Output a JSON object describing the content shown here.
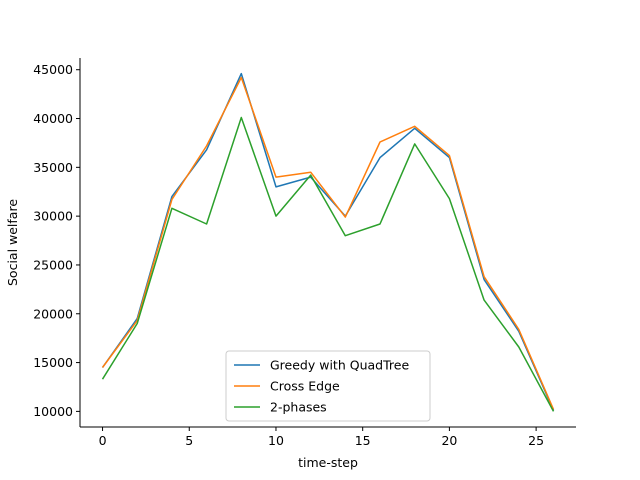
{
  "chart_data": {
    "type": "line",
    "xlabel": "time-step",
    "ylabel": "Social welfare",
    "xlim": [
      -1.3,
      27.3
    ],
    "ylim": [
      8400,
      46200
    ],
    "xticks": [
      0,
      5,
      10,
      15,
      20,
      25
    ],
    "yticks": [
      10000,
      15000,
      20000,
      25000,
      30000,
      35000,
      40000,
      45000
    ],
    "grid": false,
    "legend_position": "lower-center",
    "x": [
      0,
      2,
      4,
      6,
      8,
      10,
      12,
      14,
      16,
      18,
      20,
      22,
      24,
      26
    ],
    "series": [
      {
        "name": "Greedy with QuadTree",
        "color": "#1f77b4",
        "values": [
          14500,
          19500,
          32000,
          36800,
          44600,
          33000,
          34000,
          30000,
          36000,
          39000,
          36000,
          23500,
          18200,
          10100
        ]
      },
      {
        "name": "Cross Edge",
        "color": "#ff7f0e",
        "values": [
          14500,
          19300,
          31700,
          37200,
          44200,
          34000,
          34500,
          29900,
          37600,
          39200,
          36200,
          23800,
          18400,
          10200
        ]
      },
      {
        "name": "2-phases",
        "color": "#2ca02c",
        "values": [
          13300,
          19000,
          30800,
          29200,
          40100,
          30000,
          34200,
          28000,
          29200,
          37400,
          31800,
          21400,
          16600,
          10000
        ]
      }
    ]
  }
}
